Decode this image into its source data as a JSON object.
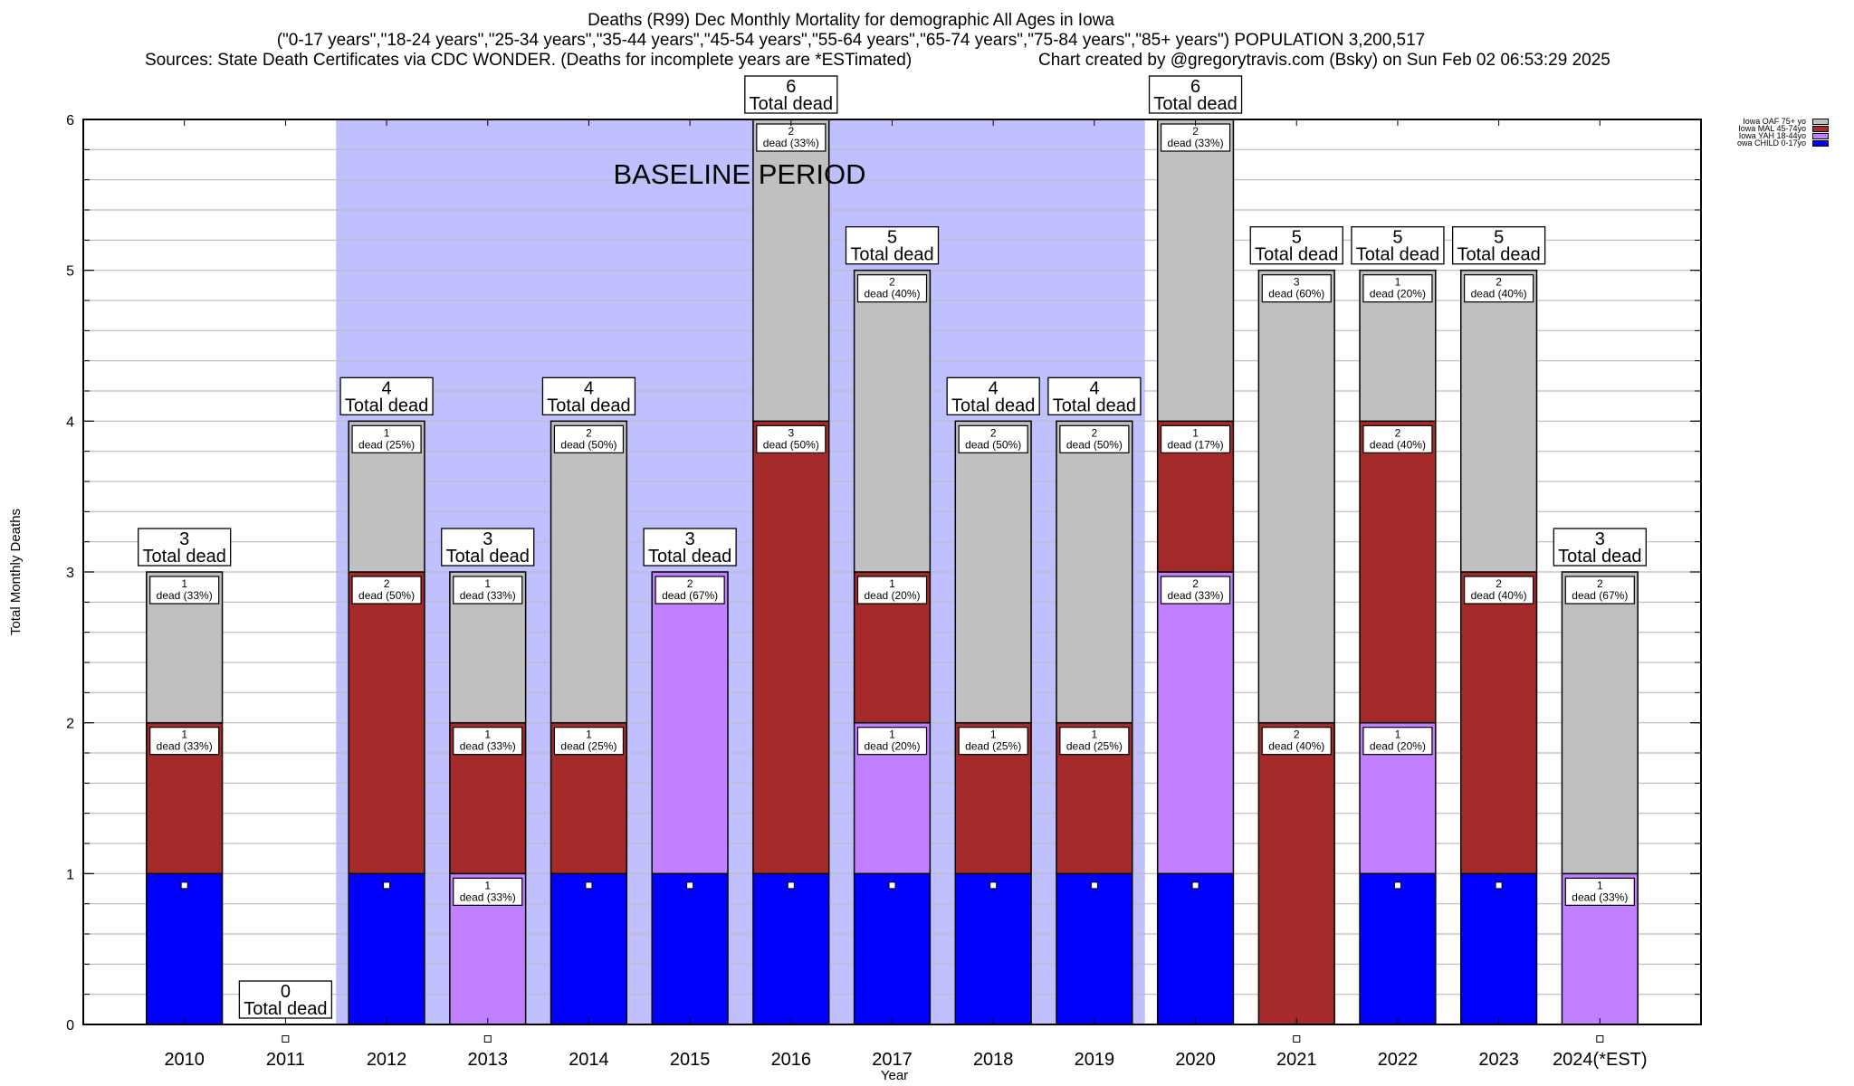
{
  "chart_data": {
    "type": "bar",
    "stacked": true,
    "title": "Deaths (R99) Dec Monthly Mortality for demographic All Ages in Iowa",
    "subtitle": "(\"0-17 years\",\"18-24 years\",\"25-34 years\",\"35-44 years\",\"45-54 years\",\"55-64 years\",\"65-74 years\",\"75-84 years\",\"85+ years\") POPULATION 3,200,517",
    "sources": "Sources: State Death Certificates via CDC WONDER. (Deaths for incomplete years are *ESTimated)",
    "credit": "Chart created by @gregorytravis.com (Bsky) on Sun Feb 02 06:53:29 2025",
    "xlabel": "Year",
    "ylabel": "Total Monthly Deaths",
    "ylim": [
      0,
      6
    ],
    "yticks": [
      0,
      1,
      2,
      3,
      4,
      5,
      6
    ],
    "xlim": [
      2009,
      2025
    ],
    "grid": true,
    "legend_position": "top-right",
    "categories": [
      "2010",
      "2011",
      "2012",
      "2013",
      "2014",
      "2015",
      "2016",
      "2017",
      "2018",
      "2019",
      "2020",
      "2021",
      "2022",
      "2023",
      "2024(*EST)"
    ],
    "series": [
      {
        "name": "Iowa CHILD 0-17yo",
        "legend_text": "owa CHILD 0-17yo",
        "color": "#0000ff",
        "values": [
          1,
          0,
          1,
          0,
          1,
          1,
          1,
          1,
          1,
          1,
          1,
          0,
          1,
          1,
          0
        ]
      },
      {
        "name": "Iowa YAH 18-44yo",
        "legend_text": "Iowa YAH 18-44yo",
        "color": "#c080ff",
        "values": [
          0,
          0,
          0,
          1,
          0,
          2,
          0,
          1,
          0,
          0,
          2,
          0,
          1,
          0,
          1
        ]
      },
      {
        "name": "Iowa MAL 45-74yo",
        "legend_text": "Iowa MAL 45-74yo",
        "color": "#a52a2a",
        "values": [
          1,
          0,
          2,
          1,
          1,
          0,
          3,
          1,
          1,
          1,
          1,
          2,
          2,
          2,
          0
        ]
      },
      {
        "name": "Iowa OAF 75+ yo",
        "legend_text": "Iowa OAF 75+ yo",
        "color": "#c0c0c0",
        "values": [
          1,
          0,
          1,
          1,
          2,
          0,
          2,
          2,
          2,
          2,
          2,
          3,
          1,
          2,
          2
        ]
      }
    ],
    "segment_labels": {
      "show_for_series": [
        "Iowa YAH 18-44yo",
        "Iowa MAL 45-74yo",
        "Iowa OAF 75+ yo"
      ],
      "format": "{n}\ndead ({pct}%)",
      "percent_values": [
        [
          null,
          33,
          33
        ],
        [
          null,
          null,
          null
        ],
        [
          null,
          50,
          25
        ],
        [
          33,
          33,
          33
        ],
        [
          null,
          25,
          50
        ],
        [
          67,
          null,
          null
        ],
        [
          null,
          50,
          33
        ],
        [
          20,
          20,
          40
        ],
        [
          null,
          25,
          50
        ],
        [
          null,
          25,
          50
        ],
        [
          33,
          17,
          33
        ],
        [
          null,
          40,
          60
        ],
        [
          20,
          40,
          20
        ],
        [
          null,
          40,
          40
        ],
        [
          33,
          null,
          67
        ]
      ]
    },
    "totals": [
      3,
      0,
      4,
      3,
      4,
      3,
      6,
      5,
      4,
      4,
      6,
      5,
      5,
      5,
      3
    ],
    "total_label_suffix": "Total dead",
    "dead_word": "dead",
    "annotations": [
      {
        "type": "shaded_region",
        "label": "BASELINE PERIOD",
        "x_from": 2011.5,
        "x_to": 2019.5,
        "color": "#c0c0ff"
      }
    ]
  },
  "legend": {
    "items": [
      {
        "label": "Iowa OAF 75+ yo",
        "color": "#c0c0c0"
      },
      {
        "label": "Iowa MAL 45-74yo",
        "color": "#a52a2a"
      },
      {
        "label": "Iowa YAH 18-44yo",
        "color": "#c080ff"
      },
      {
        "label": "owa CHILD 0-17yo",
        "color": "#0000ff"
      }
    ]
  }
}
